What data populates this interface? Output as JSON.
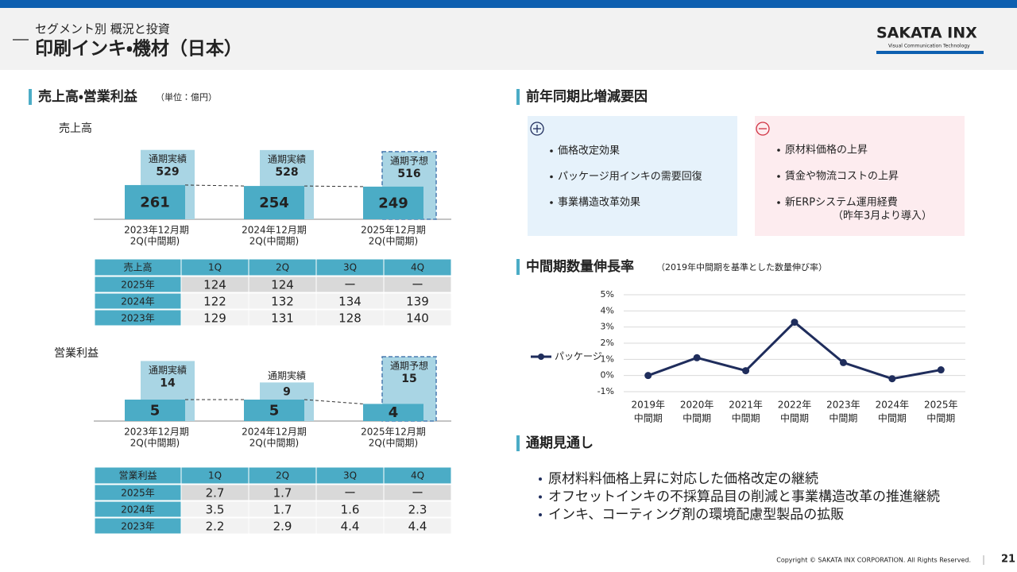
{
  "header": {
    "subtitle": "セグメント別 概況と投資",
    "title": "印刷インキ・機材（日本）",
    "logo": "SAKATA INX",
    "logo_tagline": "Visual Communication Technology"
  },
  "sales_section": {
    "title": "売上高・営業利益",
    "unit": "（単位：億円）"
  },
  "sales_chart": {
    "label": "売上高",
    "categories": [
      {
        "period": "2023年12月期",
        "half": "2Q(中間期)"
      },
      {
        "period": "2024年12月期",
        "half": "2Q(中間期)"
      },
      {
        "period": "2025年12月期",
        "half": "2Q(中間期)"
      }
    ],
    "first_half": [
      261,
      254,
      249
    ],
    "full_year": [
      529,
      528,
      516
    ],
    "full_year_labels": [
      "通期実績",
      "通期実績",
      "通期予想"
    ],
    "forecast": [
      false,
      false,
      true
    ],
    "half_color": "#4bacc6",
    "full_color": "#a9d5e4"
  },
  "sales_table": {
    "header": [
      "売上高",
      "1Q",
      "2Q",
      "3Q",
      "4Q"
    ],
    "rows": [
      [
        "2025年",
        124,
        124,
        "ー",
        "ー"
      ],
      [
        "2024年",
        122,
        132,
        134,
        139
      ],
      [
        "2023年",
        129,
        131,
        128,
        140
      ]
    ]
  },
  "profit_chart": {
    "label": "営業利益",
    "categories": [
      {
        "period": "2023年12月期",
        "half": "2Q(中間期)"
      },
      {
        "period": "2024年12月期",
        "half": "2Q(中間期)"
      },
      {
        "period": "2025年12月期",
        "half": "2Q(中間期)"
      }
    ],
    "first_half": [
      5,
      5,
      4
    ],
    "full_year": [
      14,
      9,
      15
    ],
    "full_year_labels": [
      "通期実績",
      "通期実績",
      "通期予想"
    ],
    "forecast": [
      false,
      false,
      true
    ],
    "half_color": "#4bacc6",
    "full_color": "#a9d5e4"
  },
  "profit_table": {
    "header": [
      "営業利益",
      "1Q",
      "2Q",
      "3Q",
      "4Q"
    ],
    "rows": [
      [
        "2025年",
        2.7,
        1.7,
        "ー",
        "ー"
      ],
      [
        "2024年",
        3.5,
        1.7,
        1.6,
        2.3
      ],
      [
        "2023年",
        2.2,
        2.9,
        4.4,
        4.4
      ]
    ]
  },
  "factors": {
    "title": "前年同期比増減要因",
    "plus": [
      "価格改定効果",
      "パッケージ用インキの需要回復",
      "事業構造改革効果"
    ],
    "minus": [
      "原材料価格の上昇",
      "賃金や物流コストの上昇",
      "新ERPシステム運用経費"
    ],
    "minus_note": "（昨年3月より導入）"
  },
  "growth_chart": {
    "type": "line",
    "title": "中間期数量伸長率",
    "note": "（2019年中間期を基準とした数量伸び率）",
    "categories": [
      [
        "2019年",
        "中間期"
      ],
      [
        "2020年",
        "中間期"
      ],
      [
        "2021年",
        "中間期"
      ],
      [
        "2022年",
        "中間期"
      ],
      [
        "2023年",
        "中間期"
      ],
      [
        "2024年",
        "中間期"
      ],
      [
        "2025年",
        "中間期"
      ]
    ],
    "series": [
      {
        "name": "パッケージ",
        "color": "#1f2d5c",
        "values": [
          0.0,
          1.1,
          0.3,
          3.3,
          0.8,
          -0.2,
          0.35
        ]
      }
    ],
    "ylim": [
      -1,
      5
    ],
    "yticks": [
      {
        "value": -1,
        "label": "-1%"
      },
      {
        "value": 0,
        "label": "0%"
      },
      {
        "value": 1,
        "label": "1%"
      },
      {
        "value": 2,
        "label": "2%"
      },
      {
        "value": 3,
        "label": "3%"
      },
      {
        "value": 4,
        "label": "4%"
      },
      {
        "value": 5,
        "label": "5%"
      }
    ],
    "grid": true,
    "legend": "left"
  },
  "outlook": {
    "title": "通期見通し",
    "items": [
      "原材料料価格上昇に対応した価格改定の継続",
      "オフセットインキの不採算品目の削減と事業構造改革の推進継続",
      "インキ、コーティング剤の環境配慮型製品の拡販"
    ]
  },
  "footer": {
    "copyright": "Copyright © SAKATA INX CORPORATION. All Rights Reserved.",
    "page": "21"
  }
}
